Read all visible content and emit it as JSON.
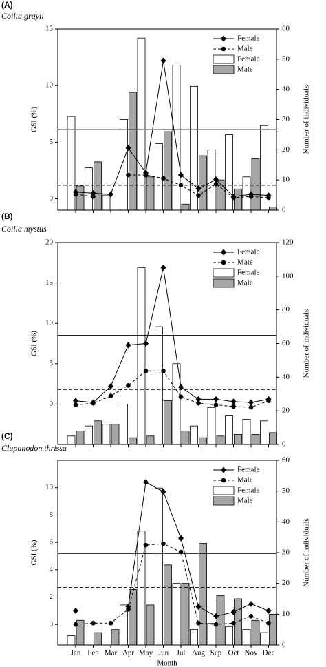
{
  "chart_data": [
    {
      "type": "combo",
      "panel_label": "(A)",
      "title": "Coilia grayii",
      "ylabel": "GSI (%)",
      "y2label": "Number of individuals",
      "ylim": [
        -1,
        15
      ],
      "yticks": [
        0,
        5,
        10,
        15
      ],
      "y2lim": [
        0,
        60
      ],
      "y2ticks": [
        0,
        10,
        20,
        30,
        40,
        50,
        60
      ],
      "hlines": [
        {
          "y": 6.1,
          "dashed": false
        },
        {
          "y": 1.2,
          "dashed": true
        }
      ],
      "series": [
        {
          "name": "Female",
          "kind": "line",
          "marker": "diamond",
          "dashed": false,
          "color": "#000000",
          "values": [
            0.6,
            0.5,
            0.4,
            4.5,
            2.3,
            12.2,
            2.1,
            0.9,
            1.7,
            0.2,
            0.4,
            0.3
          ]
        },
        {
          "name": "Male",
          "kind": "line",
          "marker": "circle",
          "dashed": true,
          "color": "#000000",
          "values": [
            0.4,
            0.2,
            null,
            2.1,
            2.1,
            1.8,
            1.2,
            0.3,
            1.3,
            0.1,
            0.2,
            0.1
          ]
        },
        {
          "name": "Female",
          "kind": "bar",
          "axis": "y2",
          "color": "#ffffff",
          "values": [
            31,
            14,
            5,
            30,
            57,
            22,
            48,
            41,
            20,
            25,
            11,
            28
          ]
        },
        {
          "name": "Male",
          "kind": "bar",
          "axis": "y2",
          "color": "#a6a6a6",
          "values": [
            8,
            16,
            0,
            39,
            11,
            26,
            2,
            18,
            10,
            7,
            17,
            1
          ]
        }
      ]
    },
    {
      "type": "combo",
      "panel_label": "(B)",
      "title": "Coilia mystus",
      "ylabel": "GSI (%)",
      "y2label": "Number of individuals",
      "ylim": [
        -5,
        20
      ],
      "yticks": [
        0,
        5,
        10,
        15,
        20
      ],
      "y2lim": [
        0,
        120
      ],
      "y2ticks": [
        0,
        20,
        40,
        60,
        80,
        100,
        120
      ],
      "hlines": [
        {
          "y": 8.5,
          "dashed": false
        },
        {
          "y": 1.8,
          "dashed": true
        }
      ],
      "series": [
        {
          "name": "Female",
          "kind": "line",
          "marker": "diamond",
          "dashed": false,
          "color": "#000000",
          "values": [
            0.4,
            0.2,
            2.2,
            7.3,
            7.5,
            16.9,
            2.1,
            0.6,
            0.6,
            0.3,
            0.2,
            0.6
          ]
        },
        {
          "name": "Male",
          "kind": "line",
          "marker": "circle",
          "dashed": true,
          "color": "#000000",
          "values": [
            -0.1,
            0.1,
            1.0,
            2.3,
            4.1,
            4.1,
            0.9,
            0.1,
            -0.1,
            -0.3,
            -0.4,
            0.4
          ]
        },
        {
          "name": "Female",
          "kind": "bar",
          "axis": "y2",
          "color": "#ffffff",
          "values": [
            5,
            11,
            12,
            24,
            105,
            70,
            48,
            11,
            22,
            17,
            15,
            14
          ]
        },
        {
          "name": "Male",
          "kind": "bar",
          "axis": "y2",
          "color": "#a6a6a6",
          "values": [
            8,
            14,
            12,
            4,
            5,
            26,
            8,
            4,
            5,
            6,
            6,
            7
          ]
        }
      ]
    },
    {
      "type": "combo",
      "panel_label": "(C)",
      "title": "Clupanodon thrissa",
      "ylabel": "GSI (%)",
      "y2label": "Number of individuals",
      "xlabel": "Month",
      "categories": [
        "Jan",
        "Feb",
        "Mar",
        "Apr",
        "May",
        "Jun",
        "Jul",
        "Aug",
        "Sep",
        "Oct",
        "Nov",
        "Dec"
      ],
      "ylim": [
        -1.5,
        12
      ],
      "yticks": [
        0,
        2,
        4,
        6,
        8,
        10
      ],
      "y2lim": [
        0,
        60
      ],
      "y2ticks": [
        0,
        10,
        20,
        30,
        40,
        50,
        60
      ],
      "hlines": [
        {
          "y": 5.2,
          "dashed": false
        },
        {
          "y": 2.7,
          "dashed": true
        }
      ],
      "series": [
        {
          "name": "Female",
          "kind": "line",
          "marker": "diamond",
          "dashed": false,
          "color": "#000000",
          "values": [
            1.0,
            null,
            null,
            1.3,
            10.4,
            9.7,
            6.3,
            1.3,
            0.6,
            0.9,
            1.5,
            1.0
          ]
        },
        {
          "name": "Male",
          "kind": "line",
          "marker": "circle",
          "dashed": true,
          "color": "#000000",
          "values": [
            0.0,
            0.1,
            0.1,
            1.1,
            5.8,
            5.9,
            5.3,
            0.1,
            0.0,
            0.1,
            0.6,
            0.1
          ]
        },
        {
          "name": "Female",
          "kind": "bar",
          "axis": "y2",
          "color": "#ffffff",
          "values": [
            3,
            0,
            0,
            13,
            37,
            51,
            20,
            5,
            7,
            6,
            5,
            4
          ]
        },
        {
          "name": "Male",
          "kind": "bar",
          "axis": "y2",
          "color": "#a6a6a6",
          "values": [
            8,
            4,
            5,
            18,
            13,
            26,
            20,
            33,
            16,
            15,
            8,
            10
          ]
        }
      ]
    }
  ]
}
